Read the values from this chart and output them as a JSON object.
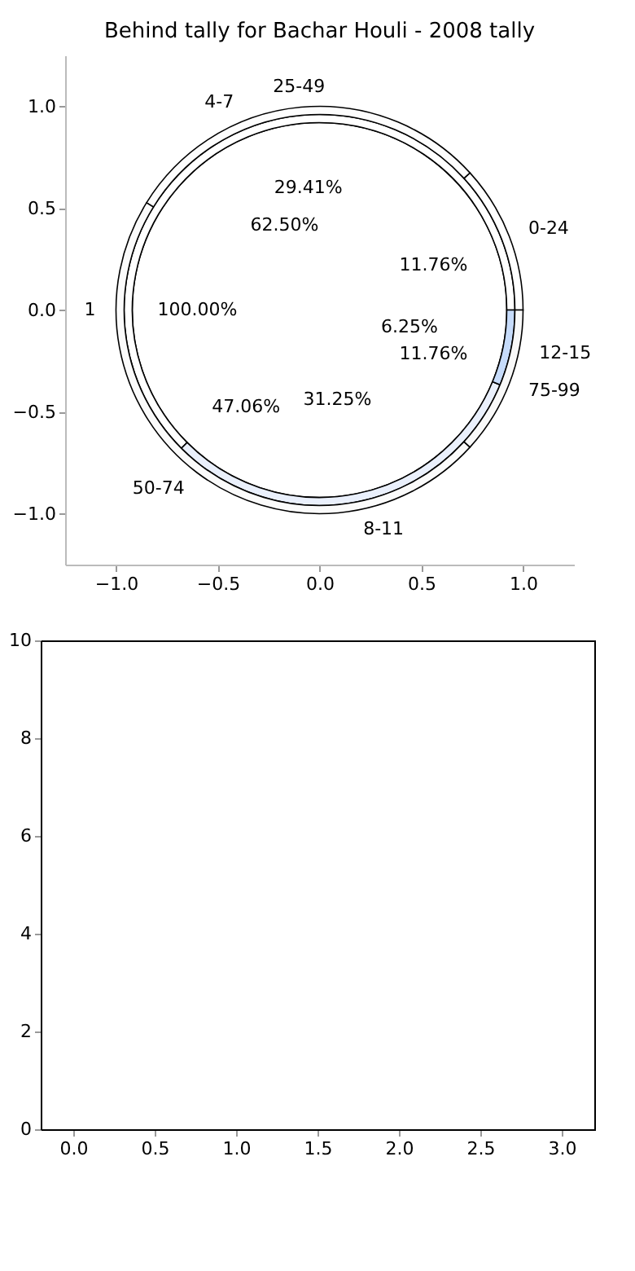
{
  "chart_data": [
    {
      "type": "donut",
      "title": "Behind tally for Bachar Houli - 2008 tally",
      "categories": [
        "0-24",
        "25-49",
        "50-74",
        "75-99"
      ],
      "values": [
        11.76,
        29.41,
        47.06,
        11.76
      ],
      "value_labels": [
        "11.76%",
        "29.41%",
        "47.06%",
        "11.76%"
      ],
      "colors": [
        "#ffffff",
        "#fdfdfd",
        "#fbfbfb",
        "#f9f9f9"
      ]
    },
    {
      "type": "donut",
      "categories": [
        "4-7",
        "8-11",
        "12-15"
      ],
      "values": [
        62.5,
        31.25,
        6.25
      ],
      "value_labels": [
        "62.50%",
        "31.25%",
        "6.25%"
      ],
      "colors": [
        "#ffffff",
        "#eaf0fc",
        "#c6dbfa"
      ]
    },
    {
      "type": "pie",
      "categories": [
        "1"
      ],
      "values": [
        100
      ],
      "value_labels": [
        "100.00%"
      ],
      "colors": [
        "#ffffff"
      ]
    },
    {
      "type": "line",
      "xlim": [
        -1.25,
        1.25
      ],
      "ylim": [
        -1.25,
        1.25
      ],
      "xticks": [
        {
          "value": -1,
          "label": "−1.0"
        },
        {
          "value": -0.5,
          "label": "−0.5"
        },
        {
          "value": 0,
          "label": "0.0"
        },
        {
          "value": 0.5,
          "label": "0.5"
        },
        {
          "value": 1,
          "label": "1.0"
        }
      ],
      "yticks": [
        {
          "value": -1,
          "label": "−1.0"
        },
        {
          "value": -0.5,
          "label": "−0.5"
        },
        {
          "value": 0,
          "label": "0.0"
        },
        {
          "value": 0.5,
          "label": "0.5"
        },
        {
          "value": 1,
          "label": "1.0"
        }
      ],
      "grid": false
    },
    {
      "type": "line",
      "xlim": [
        -0.2,
        3.2
      ],
      "ylim": [
        0,
        10
      ],
      "xticks": [
        {
          "value": 0,
          "label": "0.0"
        },
        {
          "value": 0.5,
          "label": "0.5"
        },
        {
          "value": 1,
          "label": "1.0"
        },
        {
          "value": 1.5,
          "label": "1.5"
        },
        {
          "value": 2,
          "label": "2.0"
        },
        {
          "value": 2.5,
          "label": "2.5"
        },
        {
          "value": 3,
          "label": "3.0"
        }
      ],
      "yticks": [
        0,
        2,
        4,
        6,
        8,
        10
      ],
      "grid": false
    }
  ]
}
